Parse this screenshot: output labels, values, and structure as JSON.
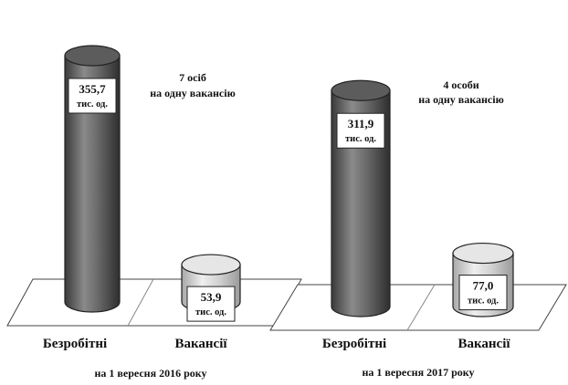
{
  "chart_data": [
    {
      "type": "bar",
      "style": "3d-cylinder",
      "categories": [
        "Безробітні",
        "Вакансії"
      ],
      "values": [
        355.7,
        53.9
      ],
      "value_labels": [
        "355,7",
        "53,9"
      ],
      "unit_label": "тис. од.",
      "annotation": [
        "7 осіб",
        "на одну вакансію"
      ],
      "xlabel": "на 1 вересня 2016 року",
      "colors": [
        "#6e6e6e",
        "#d6d6d6"
      ]
    },
    {
      "type": "bar",
      "style": "3d-cylinder",
      "categories": [
        "Безробітні",
        "Вакансії"
      ],
      "values": [
        311.9,
        77.0
      ],
      "value_labels": [
        "311,9",
        "77,0"
      ],
      "unit_label": "тис. од.",
      "annotation": [
        "4 особи",
        "на одну вакансію"
      ],
      "xlabel": "на 1 вересня 2017 року",
      "colors": [
        "#6e6e6e",
        "#d6d6d6"
      ]
    }
  ]
}
